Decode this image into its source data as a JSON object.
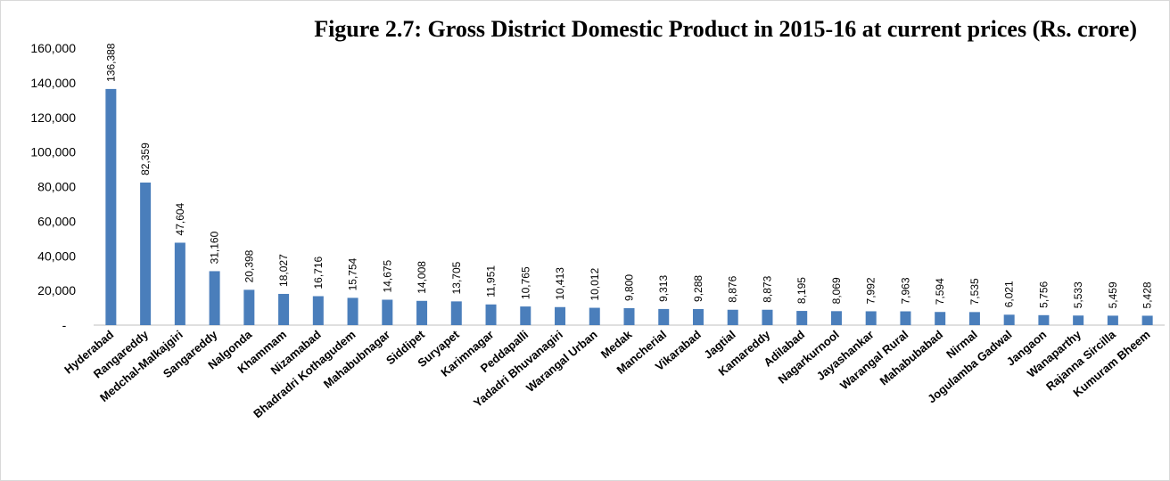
{
  "chart_data": {
    "type": "bar",
    "title": "Figure 2.7: Gross District Domestic Product in 2015-16 at current prices  (Rs. crore)",
    "xlabel": "",
    "ylabel": "",
    "ylim": [
      0,
      160000
    ],
    "y_ticks": [
      {
        "value": 160000,
        "label": "160,000"
      },
      {
        "value": 140000,
        "label": "140,000"
      },
      {
        "value": 120000,
        "label": "120,000"
      },
      {
        "value": 100000,
        "label": "100,000"
      },
      {
        "value": 80000,
        "label": "80,000"
      },
      {
        "value": 60000,
        "label": "60,000"
      },
      {
        "value": 40000,
        "label": "40,000"
      },
      {
        "value": 20000,
        "label": "20,000"
      },
      {
        "value": 0,
        "label": "-"
      }
    ],
    "grid": false,
    "bar_color": "#4a7ebb",
    "categories": [
      "Hyderabad",
      "Rangareddy",
      "Medchal-Malkajgiri",
      "Sangareddy",
      "Nalgonda",
      "Khammam",
      "Nizamabad",
      "Bhadradri Kothagudem",
      "Mahabubnagar",
      "Siddipet",
      "Suryapet",
      "Karimnagar",
      "Peddapalli",
      "Yadadri Bhuvanagiri",
      "Warangal Urban",
      "Medak",
      "Mancherial",
      "Vikarabad",
      "Jagtial",
      "Kamareddy",
      "Adilabad",
      "Nagarkurnool",
      "Jayashankar",
      "Warangal Rural",
      "Mahabubabad",
      "Nirmal",
      "Jogulamba Gadwal",
      "Jangaon",
      "Wanaparthy",
      "Rajanna Sircilla",
      "Kumuram Bheem"
    ],
    "values": [
      136388,
      82359,
      47604,
      31160,
      20398,
      18027,
      16716,
      15754,
      14675,
      14008,
      13705,
      11951,
      10765,
      10413,
      10012,
      9800,
      9313,
      9288,
      8876,
      8873,
      8195,
      8069,
      7992,
      7963,
      7594,
      7535,
      6021,
      5756,
      5533,
      5459,
      5428
    ],
    "value_labels": [
      "136,388",
      "82,359",
      "47,604",
      "31,160",
      "20,398",
      "18,027",
      "16,716",
      "15,754",
      "14,675",
      "14,008",
      "13,705",
      "11,951",
      "10,765",
      "10,413",
      "10,012",
      "9,800",
      "9,313",
      "9,288",
      "8,876",
      "8,873",
      "8,195",
      "8,069",
      "7,992",
      "7,963",
      "7,594",
      "7,535",
      "6,021",
      "5,756",
      "5,533",
      "5,459",
      "5,428"
    ]
  }
}
